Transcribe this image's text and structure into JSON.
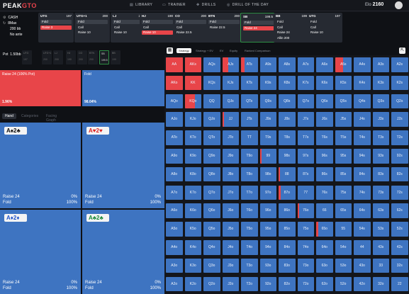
{
  "app": {
    "logo_a": "PEAK",
    "logo_b": "GTO",
    "nav": [
      {
        "icon": "book-icon",
        "label": "LIBRARY"
      },
      {
        "icon": "monitor-icon",
        "label": "TRAINER"
      },
      {
        "icon": "drills-icon",
        "label": "DRILLS"
      },
      {
        "icon": "globe-icon",
        "label": "DRILL OF THE DAY"
      }
    ],
    "elo_label": "Elo",
    "elo_value": "2160"
  },
  "game_info": {
    "game": "CASH",
    "max": "8Max",
    "stack": "200 bb",
    "ante": "No ante"
  },
  "positions": [
    {
      "name": "UTG",
      "stack": "197",
      "actions": [
        "Fold",
        "Raise 3"
      ],
      "styles": [
        "fold",
        "raise"
      ]
    },
    {
      "name": "UTG+1",
      "stack": "200",
      "actions": [
        "Fold",
        "Call",
        "Raise 10"
      ],
      "styles": [
        "fold",
        "plain",
        "plain"
      ]
    },
    {
      "name": "LJ",
      "stack": "200",
      "actions": [
        "Fold",
        "Call",
        "Raise 10"
      ],
      "styles": [
        "fold",
        "plain",
        "plain"
      ]
    },
    {
      "name": "HJ",
      "stack": "190",
      "actions": [
        "Fold",
        "Call",
        "Raise 10"
      ],
      "styles": [
        "fold",
        "plain",
        "raise"
      ]
    },
    {
      "name": "CO",
      "stack": "200",
      "actions": [
        "Fold",
        "Call",
        "Raise 22.5"
      ],
      "styles": [
        "fold",
        "plain",
        "plain"
      ]
    },
    {
      "name": "BTN",
      "stack": "200",
      "actions": [
        "Fold",
        "Raise 22.5"
      ],
      "styles": [
        "fold",
        "plain"
      ]
    },
    {
      "name": "SB",
      "stack": "199.5",
      "actions": [
        "Fold",
        "Raise 24"
      ],
      "styles": [
        "fold",
        "raise"
      ]
    },
    {
      "name": "BB",
      "stack": "199",
      "actions": [
        "Fold",
        "Call",
        "Raise 24",
        "Allin 200"
      ],
      "styles": [
        "plain",
        "plain",
        "plain",
        "plain"
      ]
    },
    {
      "name": "UTG",
      "stack": "197",
      "actions": [
        "Fold",
        "Call",
        "Raise 10"
      ],
      "styles": [
        "plain",
        "plain",
        "plain"
      ]
    }
  ],
  "pot": {
    "label": "Pot",
    "value": "1.50bb"
  },
  "history": [
    {
      "pos": "UTG",
      "val": "197"
    },
    {
      "pos": "UTG+1",
      "val": "200"
    },
    {
      "pos": "LJ",
      "val": "200"
    },
    {
      "pos": "HJ",
      "val": "190"
    },
    {
      "pos": "CO",
      "val": "200"
    },
    {
      "pos": "BTN",
      "val": "200"
    },
    {
      "pos": "SB",
      "val": "199.5"
    },
    {
      "pos": "BB",
      "val": "199"
    }
  ],
  "strategy": [
    {
      "label": "Raise 24 (106% Pot)",
      "value": "1.96%",
      "color": "#e84549"
    },
    {
      "label": "Fold",
      "value": "98.04%",
      "color": "#3e74c1"
    }
  ],
  "hand_tabs": [
    "Hand",
    "Categories",
    "Facing Graph"
  ],
  "hand_cards": [
    {
      "ranks": [
        "A",
        "2"
      ],
      "suits": [
        "♠",
        "♣"
      ],
      "colors": [
        "#111",
        "#111"
      ],
      "line1": "Raise 24",
      "line2": "Fold",
      "pct1": "0%",
      "pct2": "100%"
    },
    {
      "ranks": [
        "A",
        "2"
      ],
      "suits": [
        "♥",
        "♥"
      ],
      "colors": [
        "#d22",
        "#d22"
      ],
      "line1": "Raise 24",
      "line2": "Fold",
      "pct1": "0%",
      "pct2": "100%"
    },
    {
      "ranks": [
        "A",
        "2"
      ],
      "suits": [
        "♦",
        "♦"
      ],
      "colors": [
        "#2355c9",
        "#2355c9"
      ],
      "line1": "Raise 24",
      "line2": "Fold",
      "pct1": "0%",
      "pct2": "100%"
    },
    {
      "ranks": [
        "A",
        "2"
      ],
      "suits": [
        "♣",
        "♣"
      ],
      "colors": [
        "#1c8a3a",
        "#1c8a3a"
      ],
      "line1": "Raise 24",
      "line2": "Fold",
      "pct1": "0%",
      "pct2": "100%"
    }
  ],
  "right_tabs": [
    "Strategy",
    "Strategy + EV",
    "EV",
    "Equity",
    "Ranked Comparison"
  ],
  "matrix": {
    "ranks": [
      "A",
      "K",
      "Q",
      "J",
      "T",
      "9",
      "8",
      "7",
      "6",
      "5",
      "4",
      "3",
      "2"
    ],
    "raise_fraction": [
      [
        1,
        1,
        0,
        0.35,
        0.2,
        0,
        0,
        0,
        0,
        0.5,
        0,
        0,
        0
      ],
      [
        1,
        1,
        0,
        0,
        0,
        0,
        0,
        0,
        0,
        0,
        0,
        0,
        0
      ],
      [
        0,
        0.6,
        0,
        0,
        0,
        0,
        0,
        0,
        0,
        0,
        0,
        0,
        0
      ],
      [
        0,
        0,
        0,
        0.1,
        0,
        0,
        0,
        0,
        0,
        0,
        0,
        0,
        0
      ],
      [
        0,
        0,
        0,
        0,
        0,
        0,
        0,
        0,
        0,
        0,
        0,
        0,
        0
      ],
      [
        0,
        0,
        0,
        0,
        0,
        0.1,
        0,
        0,
        0,
        0,
        0,
        0,
        0
      ],
      [
        0,
        0,
        0,
        0,
        0,
        0,
        0.1,
        0,
        0,
        0,
        0,
        0,
        0
      ],
      [
        0,
        0,
        0,
        0,
        0,
        0,
        0.12,
        0,
        0,
        0,
        0,
        0,
        0
      ],
      [
        0,
        0,
        0,
        0,
        0,
        0,
        0,
        0.1,
        0,
        0,
        0,
        0,
        0
      ],
      [
        0,
        0,
        0,
        0,
        0,
        0,
        0,
        0,
        0.12,
        0,
        0,
        0,
        0
      ],
      [
        0,
        0,
        0,
        0,
        0,
        0,
        0,
        0,
        0,
        0,
        0,
        0,
        0
      ],
      [
        0,
        0,
        0,
        0,
        0,
        0,
        0,
        0,
        0,
        0,
        0,
        0,
        0
      ],
      [
        0,
        0,
        0,
        0,
        0,
        0,
        0,
        0,
        0,
        0,
        0,
        0,
        0
      ]
    ]
  }
}
